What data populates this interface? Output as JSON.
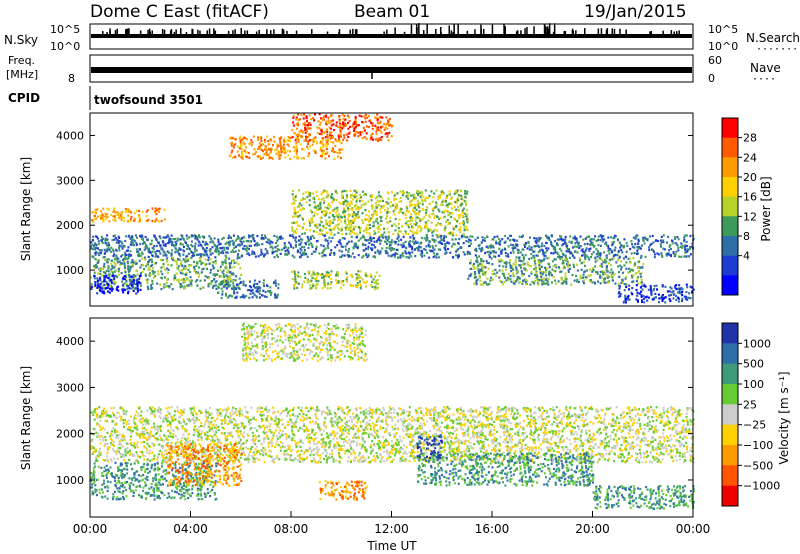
{
  "header": {
    "station": "Dome C East (fitACF)",
    "beam": "Beam 01",
    "date": "19/Jan/2015"
  },
  "strip_labels": {
    "nsky": "N.Sky",
    "nsky_top": "10^5",
    "nsky_bottom": "10^0",
    "nsearch": "N.Search",
    "nsearch_top": "10^5",
    "nsearch_bottom": "10^0",
    "freq_line1": "Freq.",
    "freq_line2": "[MHz]",
    "freq_bottom": "8",
    "nave": "Nave",
    "nave_top": "60",
    "nave_bottom": "0",
    "cpid": "CPID",
    "cpid_value": "twofsound 3501"
  },
  "chart_data": [
    {
      "type": "heatmap",
      "name": "power",
      "ylabel": "Slant Range [km]",
      "xlabel": "",
      "yticks": [
        1000,
        2000,
        3000,
        4000
      ],
      "ylim": [
        200,
        4500
      ],
      "xlim": [
        0,
        24
      ],
      "colorbar": {
        "label": "Power [dB]",
        "ticks": [
          "28",
          "24",
          "20",
          "16",
          "12",
          "8",
          "4"
        ],
        "colors": [
          "#ff0000",
          "#ff5a00",
          "#ff9b00",
          "#ffd000",
          "#b8d22a",
          "#3c9b5a",
          "#2d6fa6",
          "#1e3cd2",
          "#0000ff"
        ]
      },
      "bands": [
        {
          "t0": 0,
          "t1": 24,
          "r0": 1300,
          "r1": 1800,
          "level": 6
        },
        {
          "t0": 0,
          "t1": 6,
          "r0": 600,
          "r1": 1300,
          "level": 5
        },
        {
          "t0": 0,
          "t1": 2,
          "r0": 500,
          "r1": 900,
          "level": 8
        },
        {
          "t0": 5,
          "t1": 7.5,
          "r0": 400,
          "r1": 800,
          "level": 6
        },
        {
          "t0": 8,
          "t1": 15,
          "r0": 1800,
          "r1": 2800,
          "level": 4
        },
        {
          "t0": 8,
          "t1": 11.5,
          "r0": 600,
          "r1": 1000,
          "level": 4
        },
        {
          "t0": 15,
          "t1": 22,
          "r0": 700,
          "r1": 1300,
          "level": 5
        },
        {
          "t0": 21,
          "t1": 24,
          "r0": 300,
          "r1": 700,
          "level": 7
        },
        {
          "t0": 5.5,
          "t1": 10,
          "r0": 3500,
          "r1": 4000,
          "level": 2
        },
        {
          "t0": 8,
          "t1": 12,
          "r0": 3900,
          "r1": 4500,
          "level": 1
        },
        {
          "t0": 0,
          "t1": 3,
          "r0": 2100,
          "r1": 2400,
          "level": 2
        }
      ]
    },
    {
      "type": "heatmap",
      "name": "velocity",
      "ylabel": "Slant Range [km]",
      "xlabel": "Time UT",
      "xticks": [
        "00:00",
        "04:00",
        "08:00",
        "12:00",
        "16:00",
        "20:00",
        "00:00"
      ],
      "yticks": [
        1000,
        2000,
        3000,
        4000
      ],
      "ylim": [
        200,
        4500
      ],
      "xlim": [
        0,
        24
      ],
      "colorbar": {
        "label": "Velocity [m s⁻¹]",
        "ticks": [
          "1000",
          "500",
          "100",
          "25",
          "−25",
          "−100",
          "−500",
          "−1000"
        ],
        "colors": [
          "#2233aa",
          "#2e6fa8",
          "#3d9b78",
          "#66cc33",
          "#cccccc",
          "#ffd000",
          "#ff9b00",
          "#ff5500",
          "#ee0000"
        ]
      },
      "bands": [
        {
          "t0": 0,
          "t1": 24,
          "r0": 1400,
          "r1": 2600,
          "level": 4
        },
        {
          "t0": 0,
          "t1": 5,
          "r0": 600,
          "r1": 1400,
          "level": 2
        },
        {
          "t0": 3,
          "t1": 6,
          "r0": 900,
          "r1": 1800,
          "level": 6
        },
        {
          "t0": 9,
          "t1": 11,
          "r0": 600,
          "r1": 1000,
          "level": 6
        },
        {
          "t0": 13,
          "t1": 20,
          "r0": 900,
          "r1": 1600,
          "level": 2
        },
        {
          "t0": 20,
          "t1": 24,
          "r0": 400,
          "r1": 900,
          "level": 2
        },
        {
          "t0": 13,
          "t1": 14,
          "r0": 1500,
          "r1": 2000,
          "level": 0
        },
        {
          "t0": 6,
          "t1": 11,
          "r0": 3600,
          "r1": 4400,
          "level": 4
        }
      ]
    }
  ]
}
